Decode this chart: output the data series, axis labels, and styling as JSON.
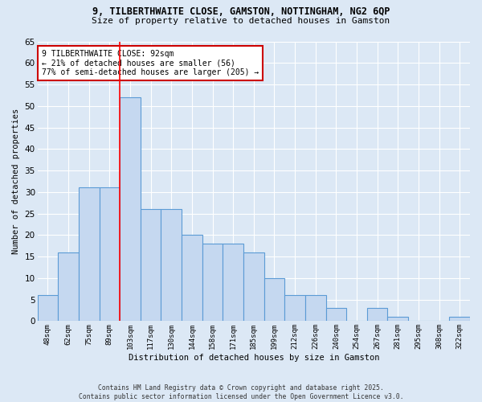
{
  "title_line1": "9, TILBERTHWAITE CLOSE, GAMSTON, NOTTINGHAM, NG2 6QP",
  "title_line2": "Size of property relative to detached houses in Gamston",
  "xlabel": "Distribution of detached houses by size in Gamston",
  "ylabel": "Number of detached properties",
  "bar_labels": [
    "48sqm",
    "62sqm",
    "75sqm",
    "89sqm",
    "103sqm",
    "117sqm",
    "130sqm",
    "144sqm",
    "158sqm",
    "171sqm",
    "185sqm",
    "199sqm",
    "212sqm",
    "226sqm",
    "240sqm",
    "254sqm",
    "267sqm",
    "281sqm",
    "295sqm",
    "308sqm",
    "322sqm"
  ],
  "bar_values": [
    6,
    16,
    31,
    31,
    52,
    26,
    26,
    20,
    18,
    18,
    16,
    10,
    6,
    6,
    3,
    0,
    3,
    1,
    0,
    0,
    1
  ],
  "bar_color": "#c5d8f0",
  "bar_edge_color": "#5b9bd5",
  "ylim": [
    0,
    65
  ],
  "yticks": [
    0,
    5,
    10,
    15,
    20,
    25,
    30,
    35,
    40,
    45,
    50,
    55,
    60,
    65
  ],
  "red_line_x": 3.5,
  "annotation_text": "9 TILBERTHWAITE CLOSE: 92sqm\n← 21% of detached houses are smaller (56)\n77% of semi-detached houses are larger (205) →",
  "annotation_box_color": "#ffffff",
  "annotation_box_edge": "#cc0000",
  "background_color": "#dce8f5",
  "grid_color": "#ffffff",
  "footer_line1": "Contains HM Land Registry data © Crown copyright and database right 2025.",
  "footer_line2": "Contains public sector information licensed under the Open Government Licence v3.0."
}
